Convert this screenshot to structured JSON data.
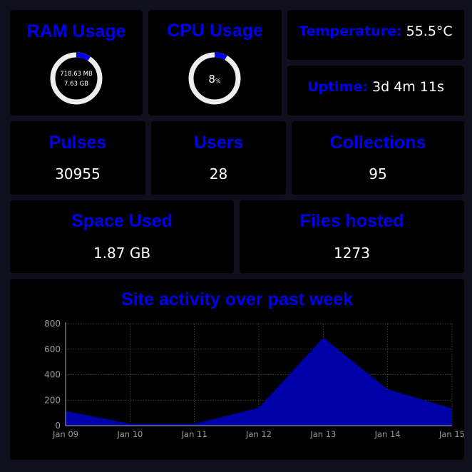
{
  "colors": {
    "accent": "#0000ee",
    "page_bg": "#0f0f1d",
    "card_bg": "#000000",
    "value_text": "#ffffff",
    "gauge_track": "#eeeeee",
    "gauge_fill": "#0000ee",
    "area_fill": "#0000a8",
    "grid": "#555555",
    "tick_text": "#999999"
  },
  "ram": {
    "title": "RAM Usage",
    "used": "718.63 MB",
    "total": "7.63 GB",
    "fraction": 0.092
  },
  "cpu": {
    "title": "CPU Usage",
    "value": "8",
    "unit": "%",
    "fraction": 0.08
  },
  "temperature": {
    "label": "Temperature:",
    "value": "55.5°C"
  },
  "uptime": {
    "label": "Uptime:",
    "value": "3d 4m 11s"
  },
  "pulses": {
    "title": "Pulses",
    "value": "30955"
  },
  "users": {
    "title": "Users",
    "value": "28"
  },
  "collections": {
    "title": "Collections",
    "value": "95"
  },
  "space": {
    "title": "Space Used",
    "value": "1.87 GB"
  },
  "files": {
    "title": "Files hosted",
    "value": "1273"
  },
  "chart_data": {
    "type": "area",
    "title": "Site activity over past week",
    "categories": [
      "Jan 09",
      "Jan 10",
      "Jan 11",
      "Jan 12",
      "Jan 13",
      "Jan 14",
      "Jan 15"
    ],
    "series": [
      {
        "values": [
          115,
          15,
          15,
          140,
          690,
          285,
          135
        ]
      }
    ],
    "ylim": [
      0,
      800
    ],
    "yticks": [
      0,
      200,
      400,
      600,
      800
    ],
    "grid": true
  }
}
